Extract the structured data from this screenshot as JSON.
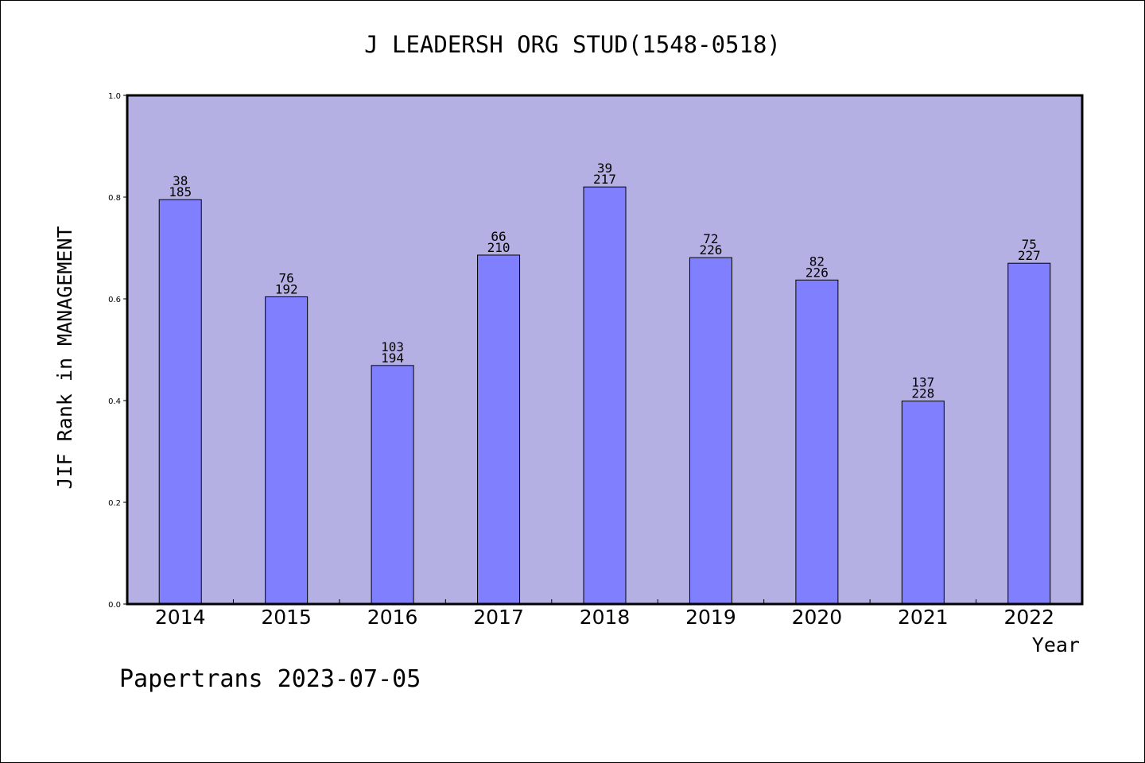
{
  "chart_data": {
    "type": "bar",
    "title": "J LEADERSH ORG STUD(1548-0518)",
    "xlabel": "Year",
    "ylabel": "JIF Rank in MANAGEMENT",
    "ylim": [
      0,
      1.0
    ],
    "yticks": [
      "0.0",
      "0.2",
      "0.4",
      "0.6",
      "0.8",
      "1.0"
    ],
    "categories": [
      "2014",
      "2015",
      "2016",
      "2017",
      "2018",
      "2019",
      "2020",
      "2021",
      "2022"
    ],
    "values": [
      0.795,
      0.604,
      0.469,
      0.686,
      0.82,
      0.681,
      0.637,
      0.399,
      0.67
    ],
    "rank": [
      "38",
      "76",
      "103",
      "66",
      "39",
      "72",
      "82",
      "137",
      "75"
    ],
    "total": [
      "185",
      "192",
      "194",
      "210",
      "217",
      "226",
      "226",
      "228",
      "227"
    ],
    "grid": false,
    "colors": {
      "plot_bg": "#b5b0e3",
      "bar": "#8080ff"
    }
  },
  "footer": "Papertrans 2023-07-05"
}
